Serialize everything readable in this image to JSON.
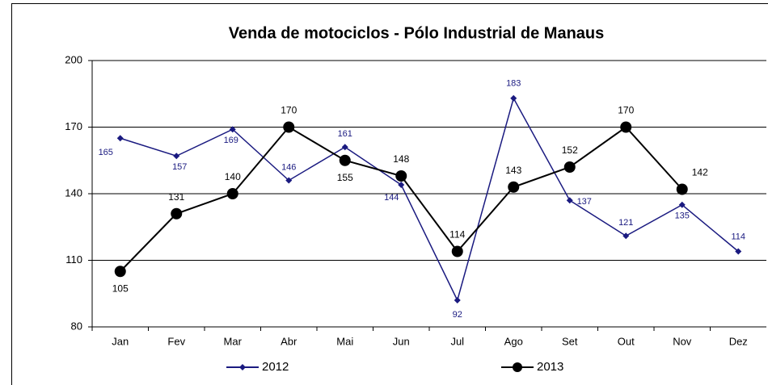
{
  "chart_data": {
    "type": "line",
    "title": "Venda de motociclos - Pólo Industrial de Manaus",
    "categories": [
      "Jan",
      "Fev",
      "Mar",
      "Abr",
      "Mai",
      "Jun",
      "Jul",
      "Ago",
      "Set",
      "Out",
      "Nov",
      "Dez"
    ],
    "series": [
      {
        "name": "2012",
        "color": "#1a1a80",
        "values": [
          165,
          157,
          169,
          146,
          161,
          144,
          92,
          183,
          137,
          121,
          135,
          114
        ]
      },
      {
        "name": "2013",
        "color": "#000000",
        "values": [
          105,
          131,
          140,
          170,
          155,
          148,
          114,
          143,
          152,
          170,
          142,
          null
        ]
      }
    ],
    "ylim": [
      80,
      200
    ],
    "yticks": [
      80,
      110,
      140,
      170,
      200
    ],
    "grid": true,
    "legend": "bottom"
  }
}
